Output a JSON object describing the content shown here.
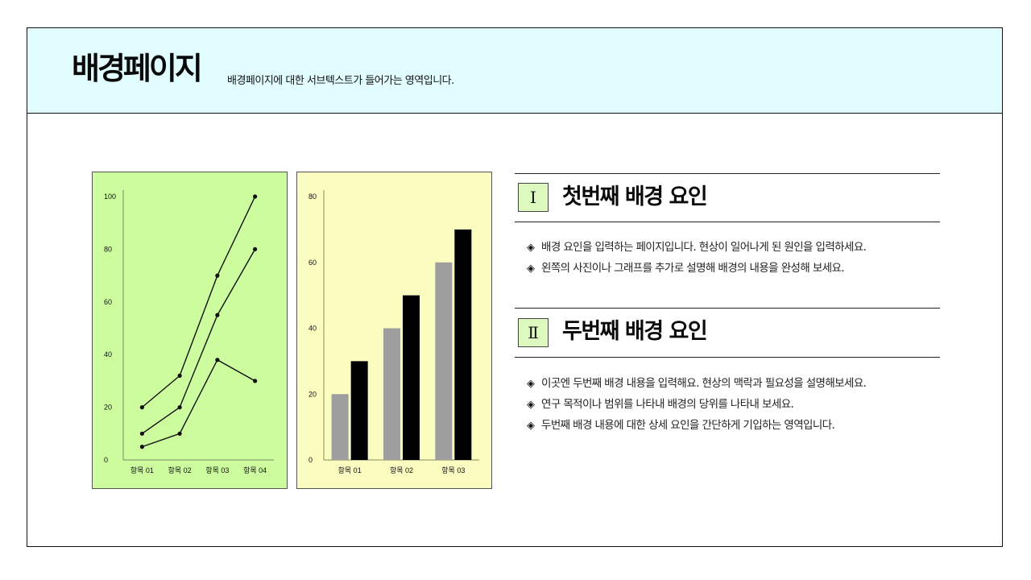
{
  "header": {
    "title": "배경페이지",
    "subtitle": "배경페이지에 대한 서브텍스트가 들어가는 영역입니다."
  },
  "sections": [
    {
      "number": "Ⅰ",
      "title": "첫번째 배경 요인",
      "bullets": [
        "배경 요인을 입력하는 페이지입니다. 현상이 일어나게 된 원인을 입력하세요.",
        "왼쪽의 사진이나 그래프를 추가로 설명해 배경의 내용을 완성해 보세요."
      ]
    },
    {
      "number": "Ⅱ",
      "title": "두번째 배경 요인",
      "bullets": [
        "이곳엔 두번째 배경 내용을 입력해요. 현상의 맥락과 필요성을 설명해보세요.",
        "연구 목적이나 범위를 나타내 배경의 당위를 나타내 보세요.",
        "두번째 배경 내용에 대한 상세 요인을 간단하게 기입하는 영역입니다."
      ]
    }
  ],
  "bullet_icon": "diamond-bullet-icon",
  "colors": {
    "header_bg": "#e2fdff",
    "line_chart_bg": "#ccfc9e",
    "bar_chart_bg": "#fbfcc0",
    "bar_gray": "#9e9e9e",
    "bar_black": "#000000"
  },
  "chart_data": [
    {
      "type": "line",
      "categories": [
        "항목 01",
        "항목 02",
        "항목 03",
        "항목 04"
      ],
      "series": [
        {
          "values": [
            20,
            32,
            70,
            100
          ]
        },
        {
          "values": [
            10,
            20,
            55,
            80
          ]
        },
        {
          "values": [
            5,
            10,
            38,
            30
          ]
        }
      ],
      "ylim": [
        0,
        100
      ],
      "yticks": [
        0,
        20,
        40,
        60,
        80,
        100
      ],
      "grid": false,
      "legend": "none"
    },
    {
      "type": "bar",
      "categories": [
        "항목 01",
        "항목 02",
        "항목 03"
      ],
      "series": [
        {
          "values": [
            20,
            40,
            60
          ]
        },
        {
          "values": [
            30,
            50,
            70
          ]
        }
      ],
      "ylim": [
        0,
        80
      ],
      "yticks": [
        0,
        20,
        40,
        60,
        80
      ],
      "grid": false,
      "legend": "none"
    }
  ]
}
